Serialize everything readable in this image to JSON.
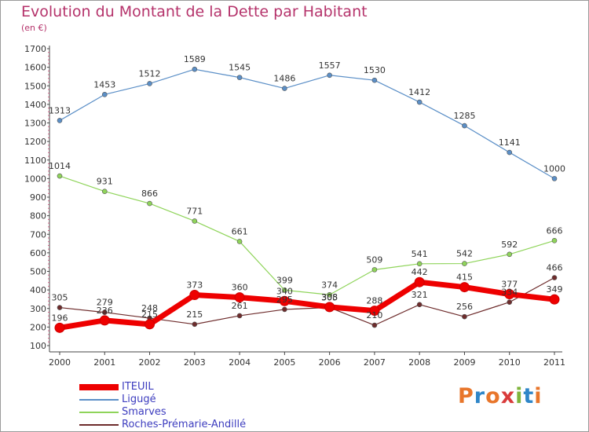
{
  "title": "Evolution du Montant de la Dette par Habitant",
  "unit_label": "(en €)",
  "logo": {
    "text": "Proxiti",
    "letters": [
      {
        "ch": "P",
        "color": "#e8762b"
      },
      {
        "ch": "r",
        "color": "#2f86c8"
      },
      {
        "ch": "o",
        "color": "#e8762b"
      },
      {
        "ch": "x",
        "color": "#d93b3b"
      },
      {
        "ch": "i",
        "color": "#7fb43b"
      },
      {
        "ch": "t",
        "color": "#2f86c8"
      },
      {
        "ch": "i",
        "color": "#e8762b"
      }
    ]
  },
  "chart_data": {
    "type": "line",
    "title": "Evolution du Montant de la Dette par Habitant",
    "subtitle": "(en €)",
    "xlabel": "",
    "ylabel": "",
    "x": [
      "2000",
      "2001",
      "2002",
      "2003",
      "2004",
      "2005",
      "2006",
      "2007",
      "2008",
      "2009",
      "2010",
      "2011"
    ],
    "ylim": [
      100,
      1700
    ],
    "yticks": [
      100,
      200,
      300,
      400,
      500,
      600,
      700,
      800,
      900,
      1000,
      1100,
      1200,
      1300,
      1400,
      1500,
      1600,
      1700
    ],
    "grid": false,
    "legend_position": "bottom-left",
    "series": [
      {
        "name": "ITEUIL",
        "color": "#ee0000",
        "values": [
          196,
          236,
          215,
          373,
          360,
          340,
          308,
          288,
          442,
          415,
          377,
          349
        ]
      },
      {
        "name": "Ligugé",
        "color": "#5b8fc7",
        "values": [
          1313,
          1453,
          1512,
          1589,
          1545,
          1486,
          1557,
          1530,
          1412,
          1285,
          1141,
          1000
        ]
      },
      {
        "name": "Smarves",
        "color": "#8fd45a",
        "values": [
          1014,
          931,
          866,
          771,
          661,
          399,
          374,
          509,
          541,
          542,
          592,
          666
        ]
      },
      {
        "name": "Roches-Prémarie-Andillé",
        "color": "#6e2c2c",
        "values": [
          305,
          279,
          248,
          215,
          261,
          295,
          305,
          210,
          321,
          256,
          334,
          466
        ]
      }
    ]
  }
}
